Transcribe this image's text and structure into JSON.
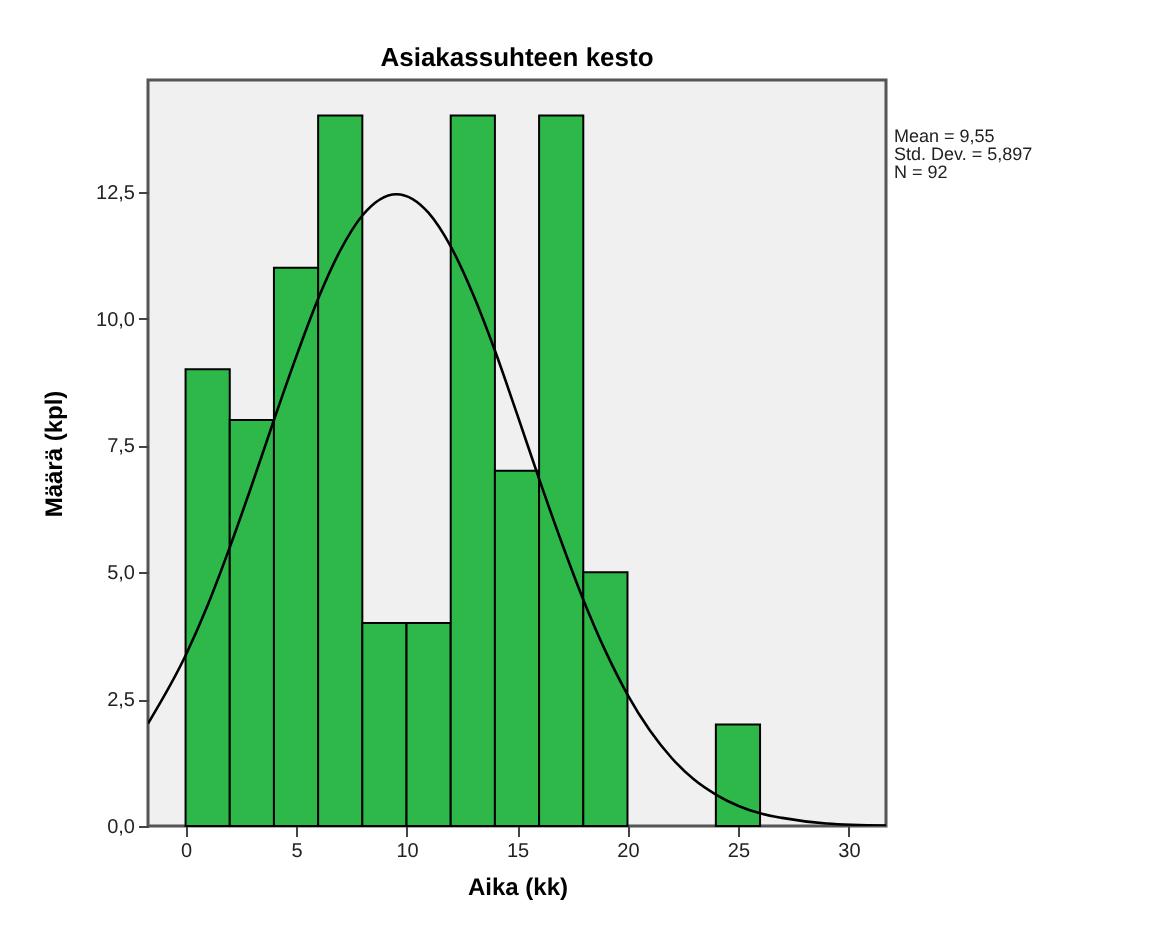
{
  "chart_data": {
    "type": "histogram",
    "title": "Asiakassuhteen kesto",
    "xlabel": "Aika (kk)",
    "ylabel": "Määrä (kpl)",
    "bins": [
      0,
      2,
      4,
      6,
      8,
      10,
      12,
      14,
      16,
      18,
      20,
      22,
      24,
      26
    ],
    "values": [
      9,
      8,
      11,
      14,
      4,
      4,
      14,
      7,
      14,
      5,
      0,
      0,
      2
    ],
    "color": "#2eb84a",
    "series": [
      {
        "type": "line",
        "color": "#000000",
        "x": [
          -1.7,
          0,
          1,
          2,
          3,
          4,
          5,
          6,
          7,
          8,
          9.55,
          11,
          12,
          13,
          14,
          15,
          16,
          17,
          18,
          19,
          20,
          21,
          22,
          23,
          24,
          25,
          26,
          27,
          29,
          31.7
        ],
        "values": [
          2.02,
          3.36,
          4.35,
          5.49,
          6.72,
          8.0,
          9.24,
          10.39,
          11.34,
          12.03,
          12.45,
          12.08,
          11.42,
          10.49,
          9.37,
          8.12,
          6.84,
          5.61,
          4.46,
          3.45,
          2.59,
          1.89,
          1.34,
          0.92,
          0.62,
          0.4,
          0.25,
          0.16,
          0.05,
          0.01
        ]
      }
    ],
    "xlim": [
      -1.7,
      31.7
    ],
    "xticks": [
      0,
      5,
      10,
      15,
      20,
      25,
      30
    ],
    "ylim": [
      0,
      14.7
    ],
    "yticks": [
      {
        "value": 0,
        "label": "0,0"
      },
      {
        "value": 2.5,
        "label": "2,5"
      },
      {
        "value": 5,
        "label": "5,0"
      },
      {
        "value": 7.5,
        "label": "7,5"
      },
      {
        "value": 10,
        "label": "10,0"
      },
      {
        "value": 12.5,
        "label": "12,5"
      }
    ],
    "grid": false,
    "annotations": [
      "Mean = 9,55",
      "Std. Dev. = 5,897",
      "N = 92"
    ]
  }
}
